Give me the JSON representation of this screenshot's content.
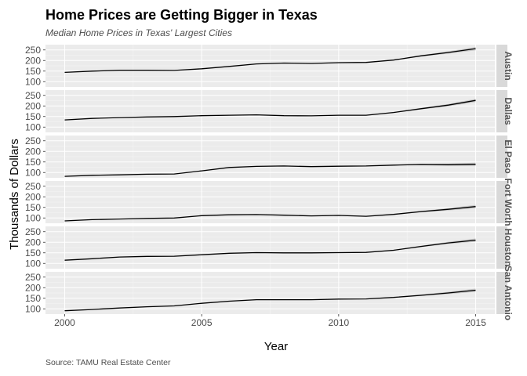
{
  "chart_data": {
    "type": "line",
    "title": "Home Prices are Getting Bigger in Texas",
    "subtitle": "Median Home Prices in Texas' Largest Cities",
    "xlabel": "Year",
    "ylabel": "Thousands of Dollars",
    "caption": "Source: TAMU Real Estate Center",
    "xlim": [
      1999.3,
      2015.7
    ],
    "ylim": [
      75,
      275
    ],
    "x_ticks": [
      2000,
      2005,
      2010,
      2015
    ],
    "y_ticks": [
      100,
      150,
      200,
      250
    ],
    "grid": true,
    "facet": "rows",
    "x": [
      2000,
      2001,
      2002,
      2003,
      2004,
      2005,
      2006,
      2007,
      2008,
      2009,
      2010,
      2011,
      2012,
      2013,
      2014,
      2015
    ],
    "series": [
      {
        "name": "Austin",
        "values": [
          144,
          150,
          154,
          154,
          153,
          161,
          172,
          184,
          188,
          186,
          190,
          191,
          202,
          222,
          238,
          256
        ]
      },
      {
        "name": "Dallas",
        "values": [
          134,
          141,
          145,
          148,
          150,
          154,
          156,
          158,
          154,
          153,
          156,
          156,
          169,
          187,
          204,
          226
        ]
      },
      {
        "name": "El Paso",
        "values": [
          82,
          87,
          89,
          92,
          93,
          108,
          124,
          129,
          131,
          128,
          130,
          131,
          135,
          138,
          137,
          139
        ]
      },
      {
        "name": "Fort Worth",
        "values": [
          86,
          92,
          95,
          98,
          100,
          111,
          115,
          116,
          113,
          110,
          112,
          108,
          117,
          130,
          141,
          154
        ]
      },
      {
        "name": "Houston",
        "values": [
          115,
          122,
          130,
          133,
          134,
          141,
          148,
          151,
          150,
          150,
          151,
          152,
          162,
          180,
          197,
          210
        ]
      },
      {
        "name": "San Antonio",
        "values": [
          91,
          97,
          104,
          110,
          114,
          126,
          136,
          143,
          143,
          143,
          146,
          147,
          154,
          164,
          175,
          188
        ]
      }
    ]
  }
}
